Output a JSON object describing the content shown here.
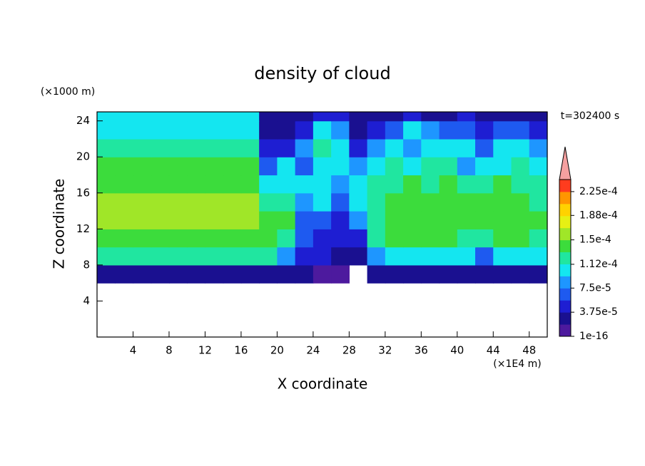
{
  "chart_data": {
    "type": "heatmap",
    "title": "density of cloud",
    "x_label": "X coordinate",
    "y_label": "Z coordinate",
    "x_unit": "(×1E4 m)",
    "y_unit": "(×1000 m)",
    "annotation": "t=302400 s",
    "xlim": [
      0,
      50
    ],
    "ylim": [
      0,
      25
    ],
    "xticks": [
      4,
      8,
      12,
      16,
      20,
      24,
      28,
      32,
      36,
      40,
      44,
      48
    ],
    "yticks": [
      4,
      8,
      12,
      16,
      20,
      24
    ],
    "xbins": [
      0,
      2,
      4,
      6,
      8,
      10,
      12,
      14,
      16,
      18,
      20,
      22,
      24,
      26,
      28,
      30,
      32,
      34,
      36,
      38,
      40,
      42,
      44,
      46,
      48,
      50
    ],
    "ybins": [
      6,
      8,
      10,
      12,
      14,
      16,
      18,
      20,
      22,
      24,
      25
    ],
    "values": [
      [
        3e-05,
        3e-05,
        3e-05,
        3e-05,
        3e-05,
        3e-05,
        3e-05,
        3e-05,
        3e-05,
        3e-05,
        2e-05,
        2e-05,
        1.5e-05,
        1.5e-05,
        null,
        2.5e-05,
        3e-05,
        3e-05,
        3e-05,
        3e-05,
        2.5e-05,
        2.5e-05,
        3e-05,
        3e-05,
        3e-05
      ],
      [
        0.000115,
        0.000115,
        0.000115,
        0.000115,
        0.000115,
        0.000115,
        0.000115,
        0.000115,
        0.000115,
        0.00013,
        8e-05,
        5e-05,
        4e-05,
        3e-05,
        3e-05,
        8e-05,
        0.00011,
        0.00011,
        0.00011,
        0.00011,
        0.0001,
        7e-05,
        0.00011,
        0.00011,
        0.0001
      ],
      [
        0.000145,
        0.000145,
        0.000145,
        0.000145,
        0.000145,
        0.000145,
        0.000145,
        0.000145,
        0.000145,
        0.00014,
        0.00013,
        7e-05,
        5e-05,
        4e-05,
        5e-05,
        0.00013,
        0.00014,
        0.000145,
        0.00014,
        0.00014,
        0.00013,
        0.00012,
        0.00014,
        0.000145,
        0.00013
      ],
      [
        0.000155,
        0.000155,
        0.000155,
        0.000155,
        0.000155,
        0.000155,
        0.000155,
        0.000155,
        0.000155,
        0.00014,
        0.00014,
        6e-05,
        6e-05,
        5e-05,
        8e-05,
        0.00012,
        0.000145,
        0.00015,
        0.00015,
        0.00015,
        0.00014,
        0.00014,
        0.00015,
        0.00015,
        0.00014
      ],
      [
        0.000155,
        0.000155,
        0.000155,
        0.000155,
        0.000155,
        0.000155,
        0.000155,
        0.000155,
        0.000155,
        0.00013,
        0.00012,
        8e-05,
        0.0001,
        6e-05,
        0.0001,
        0.00013,
        0.000145,
        0.00015,
        0.00014,
        0.00015,
        0.00014,
        0.00014,
        0.000145,
        0.00014,
        0.00013
      ],
      [
        0.00015,
        0.00015,
        0.00015,
        0.00015,
        0.00015,
        0.00015,
        0.00015,
        0.00015,
        0.00015,
        0.00011,
        0.0001,
        0.0001,
        0.00011,
        9e-05,
        0.00011,
        0.00012,
        0.00013,
        0.000135,
        0.00013,
        0.00014,
        0.00012,
        0.00013,
        0.000135,
        0.00013,
        0.00012
      ],
      [
        0.000135,
        0.000135,
        0.000135,
        0.000135,
        0.000135,
        0.000135,
        0.000135,
        0.000135,
        0.000135,
        6e-05,
        0.00011,
        7e-05,
        0.0001,
        0.00011,
        8e-05,
        0.000105,
        0.000115,
        0.00011,
        0.00012,
        0.00012,
        9e-05,
        0.0001,
        0.00011,
        0.00012,
        0.0001
      ],
      [
        0.00012,
        0.00012,
        0.00012,
        0.00012,
        0.00012,
        0.00012,
        0.00012,
        0.00012,
        0.00012,
        4e-05,
        5e-05,
        9e-05,
        0.000115,
        0.0001,
        5e-05,
        8e-05,
        0.0001,
        9e-05,
        0.00011,
        0.00011,
        0.0001,
        6e-05,
        0.0001,
        0.000105,
        8e-05
      ],
      [
        0.000105,
        0.000105,
        0.000105,
        0.000105,
        0.000105,
        0.000105,
        0.000105,
        0.000105,
        0.000105,
        3e-05,
        3e-05,
        4e-05,
        0.0001,
        9e-05,
        3e-05,
        5e-05,
        6e-05,
        0.0001,
        8e-05,
        6e-05,
        7e-05,
        4e-05,
        6e-05,
        7e-05,
        5e-05
      ],
      [
        0.0001,
        0.0001,
        0.0001,
        0.0001,
        0.0001,
        0.0001,
        0.0001,
        0.0001,
        0.0001,
        2e-05,
        2e-05,
        3e-05,
        5e-05,
        4e-05,
        2e-05,
        3e-05,
        3e-05,
        4e-05,
        3e-05,
        3e-05,
        4e-05,
        3e-05,
        3e-05,
        3e-05,
        3e-05
      ]
    ],
    "clim": [
      1e-16,
      0.00024375
    ],
    "colors": [
      "#4d1a9e",
      "#1a1090",
      "#1e1ed2",
      "#1e5af0",
      "#1e96ff",
      "#14e6f0",
      "#20e6a0",
      "#3cdc3c",
      "#a0e628",
      "#e6f014",
      "#ffd200",
      "#ff9600",
      "#ff3c1e"
    ],
    "extend_color": "#f5a0a0",
    "cticks": [
      {
        "value": 1e-16,
        "label": "1e-16"
      },
      {
        "value": 3.75e-05,
        "label": "3.75e-5"
      },
      {
        "value": 7.5e-05,
        "label": "7.5e-5"
      },
      {
        "value": 0.000112,
        "label": "1.12e-4"
      },
      {
        "value": 0.00015,
        "label": "1.5e-4"
      },
      {
        "value": 0.000188,
        "label": "1.88e-4"
      },
      {
        "value": 0.000225,
        "label": "2.25e-4"
      }
    ]
  }
}
